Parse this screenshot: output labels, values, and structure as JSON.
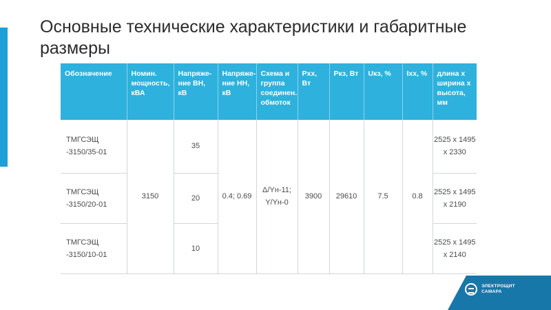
{
  "title": "Основные технические характеристики и габаритные размеры",
  "table": {
    "headers": {
      "designation": "Обозначение",
      "power": "Номин. мощность, кВА",
      "hv": "Напряже-ние ВН, кВ",
      "lv": "Напряже-ние НН, кВ",
      "scheme": "Схема и группа соединен. обмоток",
      "pxx": "Рхх, Вт",
      "pkz": "Ркз, Вт",
      "ukz": "Uкз, %",
      "ixx": "Iхх, %",
      "dims": "длина х ширина х высота, мм"
    },
    "rows": [
      {
        "designation": "ТМГСЭЩ -3150/35-01",
        "hv": "35",
        "dims": "2525 х 1495 х 2330"
      },
      {
        "designation": "ТМГСЭЩ -3150/20-01",
        "hv": "20",
        "dims": "2525 х 1495 х 2190"
      },
      {
        "designation": "ТМГСЭЩ -3150/10-01",
        "hv": "10",
        "dims": "2525 х 1495 х 2140"
      }
    ],
    "shared": {
      "power": "3150",
      "lv": "0.4; 0.69",
      "scheme": "Δ/Yн-11; Y/Yн-0",
      "pxx": "3900",
      "pkz": "29610",
      "ukz": "7.5",
      "ixx": "0.8"
    }
  },
  "logo": {
    "line1": "ЭЛЕКТРОЩИТ",
    "line2": "САМАРА"
  },
  "colors": {
    "accent": "#2eb1dd",
    "left_bar": "#1e9fd6",
    "logo_band": "#1777a8"
  }
}
